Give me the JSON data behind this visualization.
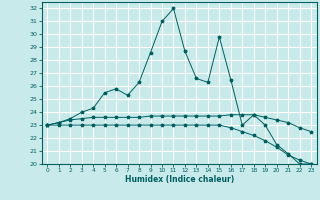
{
  "xlabel": "Humidex (Indice chaleur)",
  "bg_color": "#c8eaea",
  "grid_color": "#b8dada",
  "line_color": "#006060",
  "xlim": [
    -0.5,
    23.5
  ],
  "ylim": [
    20,
    32.5
  ],
  "yticks": [
    20,
    21,
    22,
    23,
    24,
    25,
    26,
    27,
    28,
    29,
    30,
    31,
    32
  ],
  "xticks": [
    0,
    1,
    2,
    3,
    4,
    5,
    6,
    7,
    8,
    9,
    10,
    11,
    12,
    13,
    14,
    15,
    16,
    17,
    18,
    19,
    20,
    21,
    22,
    23
  ],
  "series1_x": [
    0,
    1,
    2,
    3,
    4,
    5,
    6,
    7,
    8,
    9,
    10,
    11,
    12,
    13,
    14,
    15,
    16,
    17,
    18,
    19,
    20,
    21,
    22,
    23
  ],
  "series1_y": [
    23.0,
    23.2,
    23.5,
    24.0,
    24.3,
    25.5,
    25.8,
    25.3,
    26.3,
    28.6,
    31.0,
    32.0,
    28.7,
    26.6,
    26.3,
    29.8,
    26.5,
    23.0,
    23.8,
    23.0,
    21.5,
    20.8,
    20.0,
    20.0
  ],
  "series2_x": [
    0,
    1,
    2,
    3,
    4,
    5,
    6,
    7,
    8,
    9,
    10,
    11,
    12,
    13,
    14,
    15,
    16,
    17,
    18,
    19,
    20,
    21,
    22,
    23
  ],
  "series2_y": [
    23.0,
    23.2,
    23.4,
    23.5,
    23.6,
    23.6,
    23.6,
    23.6,
    23.6,
    23.7,
    23.7,
    23.7,
    23.7,
    23.7,
    23.7,
    23.7,
    23.8,
    23.8,
    23.8,
    23.6,
    23.4,
    23.2,
    22.8,
    22.5
  ],
  "series3_x": [
    0,
    1,
    2,
    3,
    4,
    5,
    6,
    7,
    8,
    9,
    10,
    11,
    12,
    13,
    14,
    15,
    16,
    17,
    18,
    19,
    20,
    21,
    22,
    23
  ],
  "series3_y": [
    23.0,
    23.0,
    23.0,
    23.0,
    23.0,
    23.0,
    23.0,
    23.0,
    23.0,
    23.0,
    23.0,
    23.0,
    23.0,
    23.0,
    23.0,
    23.0,
    22.8,
    22.5,
    22.2,
    21.8,
    21.3,
    20.7,
    20.3,
    20.0
  ]
}
